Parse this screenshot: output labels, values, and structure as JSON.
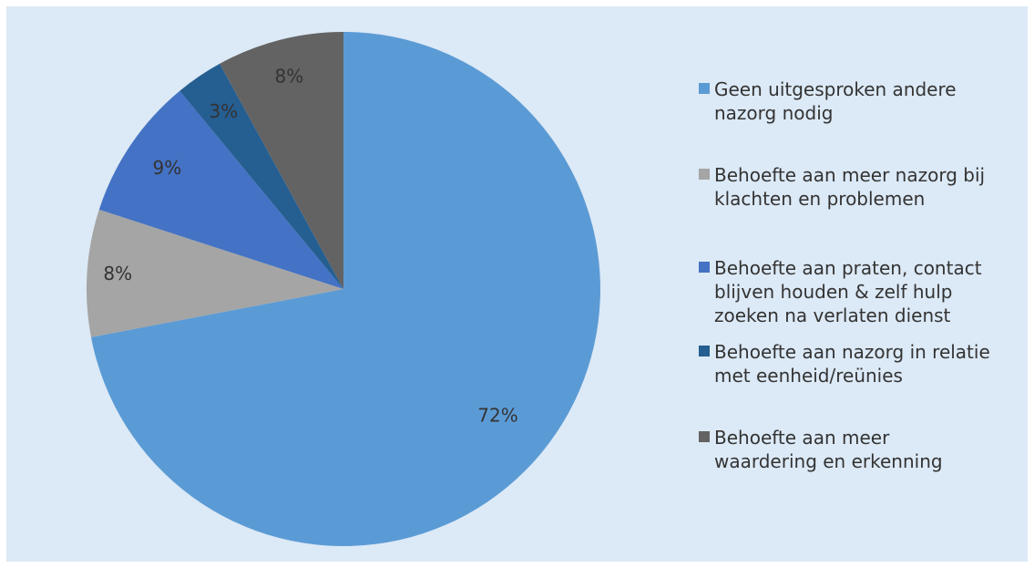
{
  "chart_data": {
    "type": "pie",
    "title": "",
    "start_angle_deg": 0,
    "direction": "clockwise",
    "slices": [
      {
        "label": "Geen uitgesproken andere nazorg nodig",
        "value": 72,
        "display": "72%",
        "color": "#5b9bd5"
      },
      {
        "label": "Behoefte aan meer nazorg bij klachten en problemen",
        "value": 8,
        "display": "8%",
        "color": "#a5a5a5"
      },
      {
        "label": "Behoefte aan praten, contact blijven houden & zelf hulp zoeken na verlaten dienst",
        "value": 9,
        "display": "9%",
        "color": "#4472c4"
      },
      {
        "label": "Behoefte aan nazorg in relatie met eenheid/reünies",
        "value": 3,
        "display": "3%",
        "color": "#255e91"
      },
      {
        "label": "Behoefte aan meer waardering en erkenning",
        "value": 8,
        "display": "8%",
        "color": "#636363"
      }
    ],
    "legend_position": "right",
    "legend": [
      {
        "lines": [
          "Geen uitgesproken andere",
          "nazorg nodig"
        ],
        "color": "#5b9bd5"
      },
      {
        "lines": [
          "Behoefte aan meer nazorg bij",
          "klachten en problemen"
        ],
        "color": "#a5a5a5"
      },
      {
        "lines": [
          "Behoefte aan praten, contact",
          "blijven houden & zelf hulp",
          "zoeken na verlaten dienst"
        ],
        "color": "#4472c4"
      },
      {
        "lines": [
          "Behoefte aan nazorg in relatie",
          "met eenheid/reünies"
        ],
        "color": "#255e91"
      },
      {
        "lines": [
          "Behoefte aan meer",
          "waardering en erkenning"
        ],
        "color": "#636363"
      }
    ]
  }
}
